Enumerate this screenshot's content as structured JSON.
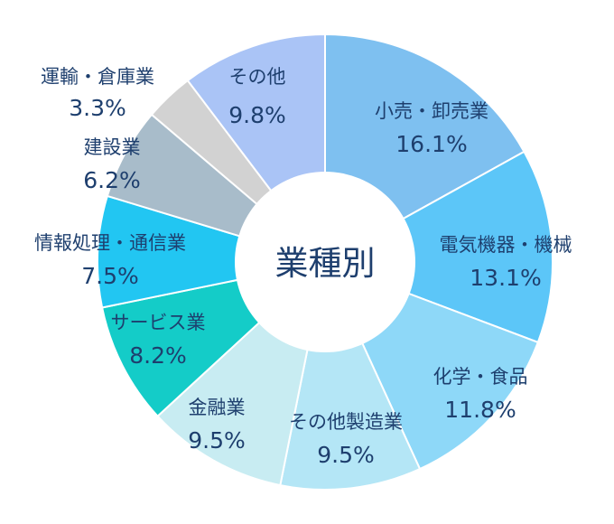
{
  "chart_data": {
    "type": "pie",
    "variant": "donut",
    "center_label": "業種別",
    "start": "top, clockwise",
    "slices": [
      {
        "label": "小売・卸売業",
        "value": 16.1,
        "value_label": "16.1%",
        "color": "#7ec0f0"
      },
      {
        "label": "電気機器・機械",
        "value": 13.1,
        "value_label": "13.1%",
        "color": "#5cc6f8"
      },
      {
        "label": "化学・食品",
        "value": 11.8,
        "value_label": "11.8%",
        "color": "#8ed8f8"
      },
      {
        "label": "その他製造業",
        "value": 9.5,
        "value_label": "9.5%",
        "color": "#b4e6f6"
      },
      {
        "label": "金融業",
        "value": 9.5,
        "value_label": "9.5%",
        "color": "#c8ecf2"
      },
      {
        "label": "サービス業",
        "value": 8.2,
        "value_label": "8.2%",
        "color": "#14ccc8"
      },
      {
        "label": "情報処理・通信業",
        "value": 7.5,
        "value_label": "7.5%",
        "color": "#22c6f2"
      },
      {
        "label": "建設業",
        "value": 6.2,
        "value_label": "6.2%",
        "color": "#a8bcca"
      },
      {
        "label": "運輸・倉庫業",
        "value": 3.3,
        "value_label": "3.3%",
        "color": "#d2d2d2"
      },
      {
        "label": "その他",
        "value": 9.8,
        "value_label": "9.8%",
        "color": "#aac4f6"
      }
    ],
    "text_color": "#1e3f6e"
  }
}
